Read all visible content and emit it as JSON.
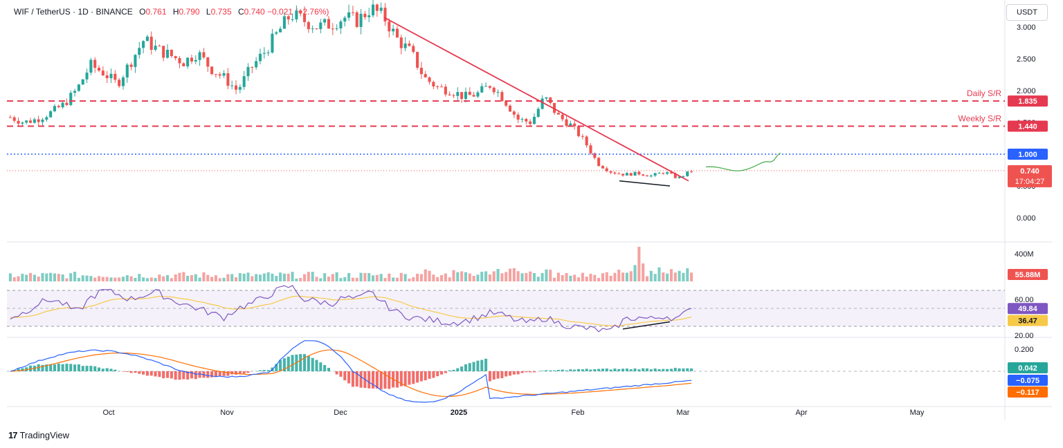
{
  "header": {
    "pair": "WIF / TetherUS · 1D · BINANCE",
    "o_label": "O",
    "o_value": "0.761",
    "h_label": "H",
    "h_value": "0.790",
    "l_label": "L",
    "l_value": "0.735",
    "c_label": "C",
    "c_value": "0.740",
    "change": "−0.021 (−2.76%)"
  },
  "currency_button": "USDT",
  "brand": "TradingView",
  "colors": {
    "up": "#26a69a",
    "down": "#ef5350",
    "level_line": "#e53950",
    "blue_line": "#2962ff",
    "rsi_line": "#7e57c2",
    "rsi_ma": "#f7c948",
    "macd_line": "#2962ff",
    "signal_line": "#ff6d00",
    "projection": "#4caf50"
  },
  "chart_data": [
    {
      "type": "candlestick",
      "panel": "price",
      "ylim": [
        0.0,
        3.2
      ],
      "y_ticks": [
        "0.000",
        "0.500",
        "1.000",
        "1.500",
        "2.000",
        "2.500",
        "3.000"
      ],
      "x_ticks": [
        "Oct",
        "Nov",
        "Dec",
        "2025",
        "Feb",
        "Mar",
        "Apr",
        "May"
      ],
      "close_path": [
        1.58,
        1.5,
        1.55,
        1.65,
        1.78,
        2.02,
        2.4,
        2.28,
        2.1,
        2.45,
        2.8,
        2.65,
        2.55,
        2.45,
        2.6,
        2.35,
        2.2,
        2.0,
        2.35,
        2.6,
        2.9,
        3.2,
        3.1,
        3.0,
        3.05,
        3.15,
        3.1,
        3.3,
        3.15,
        2.8,
        2.6,
        2.2,
        2.05,
        2.0,
        1.9,
        1.95,
        2.1,
        1.85,
        1.55,
        1.5,
        1.9,
        1.6,
        1.45,
        1.2,
        0.85,
        0.72,
        0.68,
        0.7,
        0.66,
        0.72,
        0.62,
        0.74
      ],
      "levels": [
        {
          "label": "Daily S/R",
          "value": 1.835
        },
        {
          "label": "Weekly S/R",
          "value": 1.44
        },
        {
          "label": "",
          "value": 1.0
        }
      ],
      "price_labels": {
        "daily": "1.835",
        "weekly": "1.440",
        "one": "1.000",
        "last": "0.740",
        "timer": "17:04:27"
      },
      "level_text": {
        "daily": "Daily S/R",
        "weekly": "Weekly S/R"
      }
    },
    {
      "type": "bar",
      "panel": "volume",
      "y_ticks": [
        "400M"
      ],
      "last_label": "55.88M"
    },
    {
      "type": "line",
      "panel": "rsi",
      "ylim": [
        20,
        80
      ],
      "y_ticks": [
        "60.00",
        "20.00"
      ],
      "rsi_path": [
        40,
        45,
        55,
        60,
        55,
        45,
        62,
        70,
        66,
        60,
        65,
        68,
        60,
        55,
        50,
        45,
        40,
        50,
        55,
        62,
        70,
        75,
        60,
        58,
        55,
        62,
        60,
        68,
        55,
        45,
        40,
        38,
        36,
        34,
        36,
        40,
        45,
        42,
        36,
        34,
        40,
        34,
        30,
        28,
        26,
        24,
        38,
        40,
        38,
        42,
        38,
        49.84
      ],
      "rsi_value": "49.84",
      "ma_value": "36.47"
    },
    {
      "type": "line",
      "panel": "macd",
      "y_ticks": [
        "0.200"
      ],
      "hist_value": "0.042",
      "macd_value": "−0.075",
      "signal_value": "−0.117"
    }
  ]
}
